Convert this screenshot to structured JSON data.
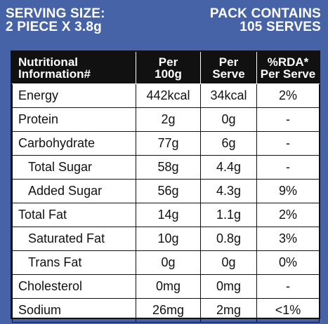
{
  "header": {
    "serving_size_line1": "SERVING SIZE:",
    "serving_size_line2": "2 PIECE X 3.8g",
    "pack_contains_line1": "PACK CONTAINS",
    "pack_contains_line2": "105 SERVES"
  },
  "table": {
    "headers": {
      "col1_line1": "Nutritional",
      "col1_line2": "Information#",
      "col2_line1": "Per",
      "col2_line2": "100g",
      "col3_line1": "Per",
      "col3_line2": "Serve",
      "col4_line1": "%RDA*",
      "col4_line2": "Per Serve"
    },
    "rows": [
      {
        "name": "Energy",
        "per100": "442kcal",
        "serve": "34kcal",
        "rda": "2%"
      },
      {
        "name": "Protein",
        "per100": "2g",
        "serve": "0g",
        "rda": "-"
      },
      {
        "name": "Carbohydrate",
        "per100": "77g",
        "serve": "6g",
        "rda": "-"
      },
      {
        "name": "Total Sugar",
        "per100": "58g",
        "serve": "4.4g",
        "rda": "-"
      },
      {
        "name": "Added Sugar",
        "per100": "56g",
        "serve": "4.3g",
        "rda": "9%"
      },
      {
        "name": "Total Fat",
        "per100": "14g",
        "serve": "1.1g",
        "rda": "2%"
      },
      {
        "name": "Saturated Fat",
        "per100": "10g",
        "serve": "0.8g",
        "rda": "3%"
      },
      {
        "name": "Trans Fat",
        "per100": "0g",
        "serve": "0g",
        "rda": "0%"
      },
      {
        "name": "Cholesterol",
        "per100": "0mg",
        "serve": "0mg",
        "rda": "-"
      },
      {
        "name": "Sodium",
        "per100": "26mg",
        "serve": "2mg",
        "rda": "<1%"
      }
    ]
  },
  "colors": {
    "background": "#4763a8",
    "header_text": "#ffffff",
    "table_header_bg": "#111111",
    "table_body_bg": "#ffffff"
  }
}
